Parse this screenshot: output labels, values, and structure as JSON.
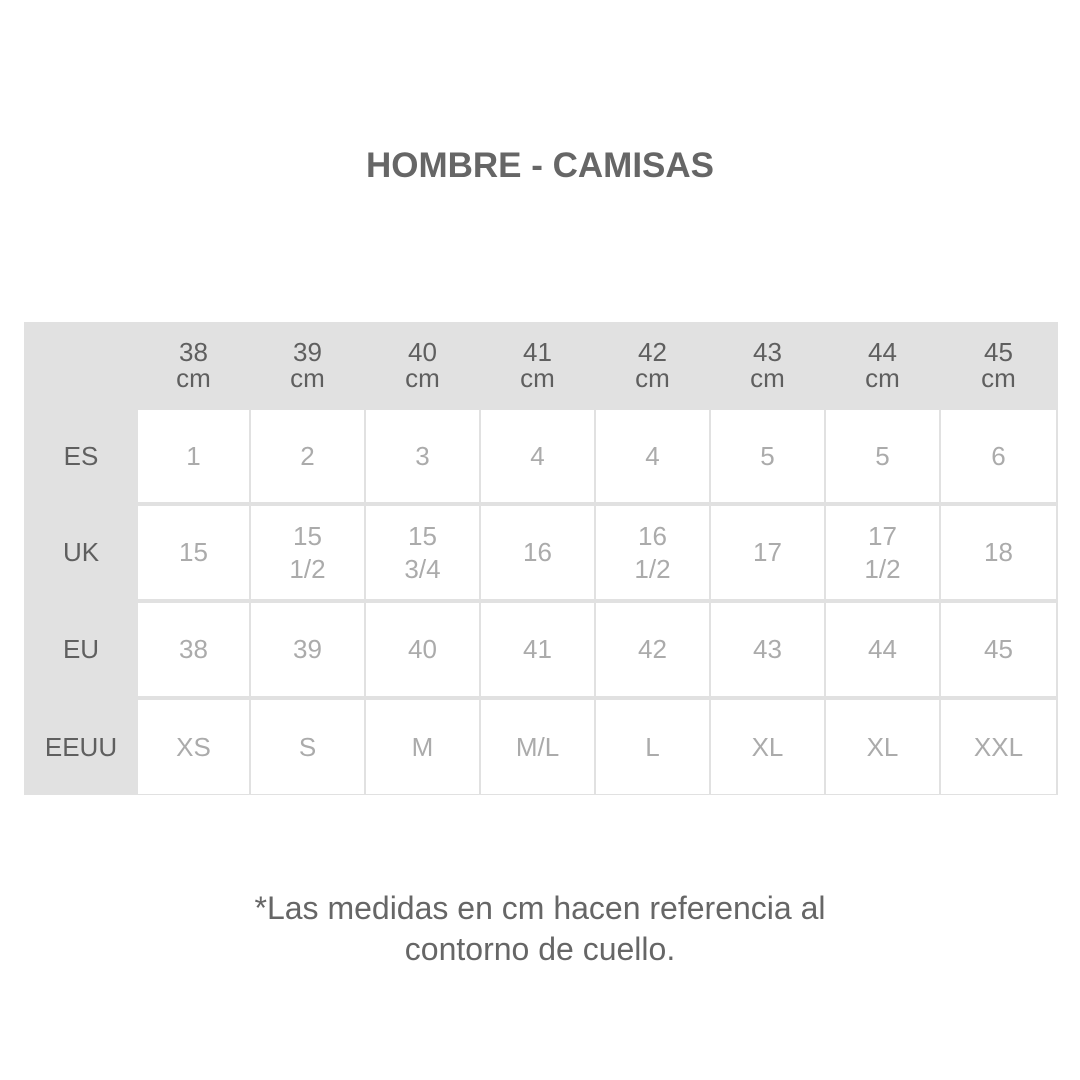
{
  "title": "HOMBRE - CAMISAS",
  "columns": [
    "38\ncm",
    "39\ncm",
    "40\ncm",
    "41\ncm",
    "42\ncm",
    "43\ncm",
    "44\ncm",
    "45\ncm"
  ],
  "rows": [
    {
      "label": "ES",
      "values": [
        "1",
        "2",
        "3",
        "4",
        "4",
        "5",
        "5",
        "6"
      ]
    },
    {
      "label": "UK",
      "values": [
        "15",
        "15\n1/2",
        "15\n3/4",
        "16",
        "16\n1/2",
        "17",
        "17\n1/2",
        "18"
      ]
    },
    {
      "label": "EU",
      "values": [
        "38",
        "39",
        "40",
        "41",
        "42",
        "43",
        "44",
        "45"
      ]
    },
    {
      "label": "EEUU",
      "values": [
        "XS",
        "S",
        "M",
        "M/L",
        "L",
        "XL",
        "XL",
        "XXL"
      ]
    }
  ],
  "footnote": "*Las medidas en cm hacen referencia al\ncontorno de cuello.",
  "colors": {
    "header_bg": "#e1e1e1",
    "header_text": "#5f5f5f",
    "cell_text": "#ababab",
    "title": "#666666"
  }
}
